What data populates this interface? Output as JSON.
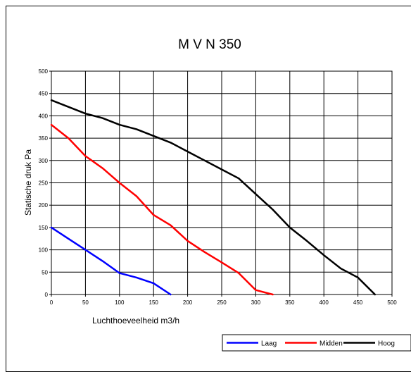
{
  "chart_data": {
    "type": "line",
    "title": "M V N 350",
    "xlabel": "Luchthoeveelheid m3/h",
    "ylabel": "Statische druk Pa",
    "xlim": [
      0,
      500
    ],
    "ylim": [
      0,
      500
    ],
    "xticks": [
      "0",
      "50",
      "100",
      "150",
      "200",
      "250",
      "300",
      "350",
      "400",
      "450",
      "500"
    ],
    "yticks": [
      "0",
      "50",
      "100",
      "150",
      "200",
      "250",
      "300",
      "350",
      "400",
      "450",
      "500"
    ],
    "grid": true,
    "legend_position": "bottom-right",
    "series": [
      {
        "name": "Laag",
        "color": "#0000ff",
        "points": [
          [
            0,
            150
          ],
          [
            25,
            125
          ],
          [
            50,
            100
          ],
          [
            75,
            75
          ],
          [
            100,
            48
          ],
          [
            125,
            38
          ],
          [
            150,
            25
          ],
          [
            175,
            0
          ]
        ]
      },
      {
        "name": "Midden",
        "color": "#ff0000",
        "points": [
          [
            0,
            380
          ],
          [
            25,
            350
          ],
          [
            50,
            310
          ],
          [
            75,
            283
          ],
          [
            100,
            250
          ],
          [
            125,
            220
          ],
          [
            150,
            178
          ],
          [
            175,
            155
          ],
          [
            200,
            120
          ],
          [
            225,
            95
          ],
          [
            250,
            72
          ],
          [
            275,
            48
          ],
          [
            300,
            10
          ],
          [
            325,
            0
          ]
        ]
      },
      {
        "name": "Hoog",
        "color": "#000000",
        "points": [
          [
            0,
            435
          ],
          [
            25,
            420
          ],
          [
            50,
            405
          ],
          [
            75,
            395
          ],
          [
            100,
            380
          ],
          [
            125,
            370
          ],
          [
            150,
            355
          ],
          [
            175,
            340
          ],
          [
            200,
            320
          ],
          [
            225,
            300
          ],
          [
            250,
            280
          ],
          [
            275,
            260
          ],
          [
            300,
            225
          ],
          [
            325,
            190
          ],
          [
            350,
            150
          ],
          [
            375,
            120
          ],
          [
            400,
            88
          ],
          [
            425,
            58
          ],
          [
            450,
            38
          ],
          [
            475,
            0
          ]
        ]
      }
    ]
  }
}
